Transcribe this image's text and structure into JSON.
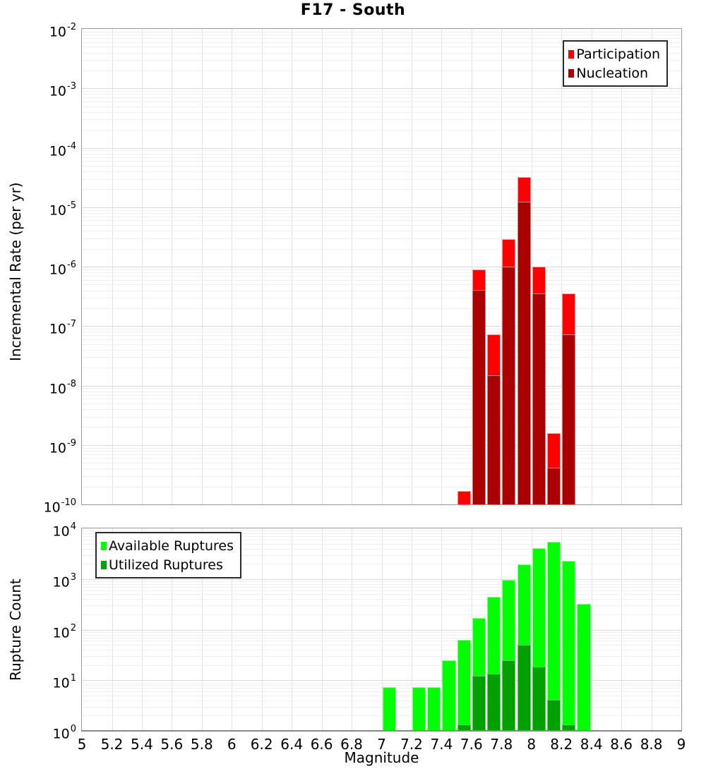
{
  "title": "F17 - South",
  "axes": {
    "x_label": "Magnitude",
    "x_ticks": [
      5,
      5.2,
      5.4,
      5.6,
      5.8,
      6,
      6.2,
      6.4,
      6.6,
      6.8,
      7,
      7.2,
      7.4,
      7.6,
      7.8,
      8,
      8.2,
      8.4,
      8.6,
      8.8,
      9
    ]
  },
  "chart_data": [
    {
      "type": "bar",
      "panel": "rate",
      "title": "F17 - South",
      "ylabel": "Incremental Rate (per yr)",
      "xlabel": "Magnitude",
      "yscale": "log",
      "grid": true,
      "legend_position": "top-right",
      "xlim": [
        5,
        9
      ],
      "ylim": [
        1e-10,
        0.01
      ],
      "y_tick_exponents": [
        -2,
        -3,
        -4,
        -5,
        -6,
        -7,
        -8,
        -9,
        -10
      ],
      "bin_width": 0.1,
      "bin_centers": [
        7.55,
        7.65,
        7.75,
        7.85,
        7.95,
        8.05,
        8.15,
        8.25
      ],
      "series": [
        {
          "name": "Participation",
          "color": "#ff0000",
          "border_color": "#ff9999",
          "values": [
            1.7e-10,
            8.9e-07,
            7.2e-08,
            2.9e-06,
            3.2e-05,
            1e-06,
            1.6e-09,
            3.5e-07
          ]
        },
        {
          "name": "Nucleation",
          "color": "#aa0000",
          "border_color": "#d47f7f",
          "values": [
            null,
            4.1e-07,
            1.5e-08,
            1e-06,
            1.25e-05,
            3.5e-07,
            4.1e-10,
            7.2e-08
          ]
        }
      ]
    },
    {
      "type": "bar",
      "panel": "count",
      "title": "",
      "ylabel": "Rupture Count",
      "xlabel": "Magnitude",
      "yscale": "log",
      "grid": true,
      "legend_position": "top-left",
      "xlim": [
        5,
        9
      ],
      "ylim": [
        1,
        10000
      ],
      "y_tick_exponents": [
        4,
        3,
        2,
        1,
        0
      ],
      "bin_width": 0.1,
      "bin_centers": [
        7.05,
        7.25,
        7.35,
        7.45,
        7.55,
        7.65,
        7.75,
        7.85,
        7.95,
        8.05,
        8.15,
        8.25,
        8.35
      ],
      "series": [
        {
          "name": "Available Ruptures",
          "color": "#00ff00",
          "border_color": "#96ff96",
          "values": [
            7,
            7,
            7,
            24,
            60,
            165,
            430,
            930,
            1900,
            3900,
            5200,
            2200,
            310
          ]
        },
        {
          "name": "Utilized Ruptures",
          "color": "#00a000",
          "border_color": "#5ecb5e",
          "values": [
            null,
            null,
            null,
            null,
            1,
            12,
            13,
            24,
            48,
            18,
            4,
            1,
            null
          ]
        }
      ]
    }
  ]
}
